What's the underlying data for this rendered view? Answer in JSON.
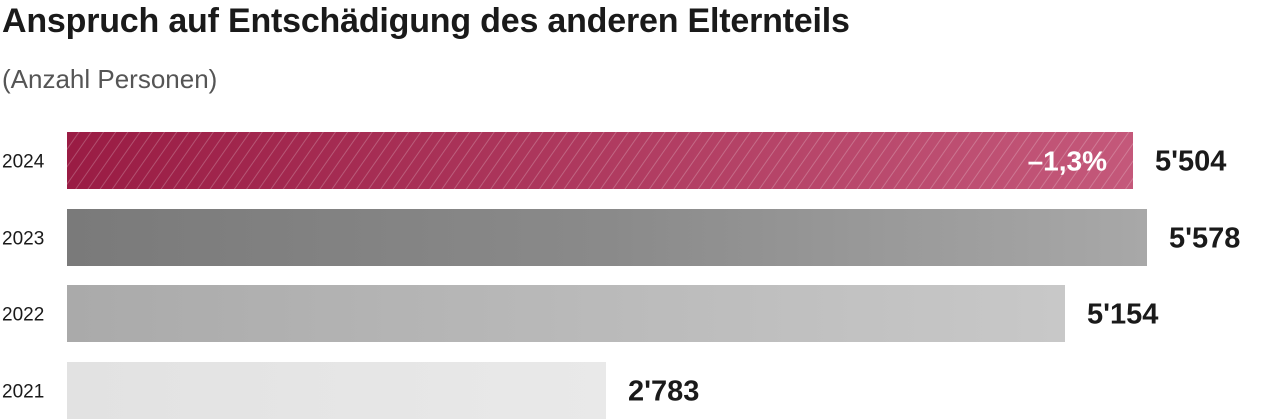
{
  "chart_data": {
    "type": "bar",
    "orientation": "horizontal",
    "title": "Anspruch auf Entschädigung des anderen Elternteils",
    "subtitle": "(Anzahl Personen)",
    "categories": [
      "2024",
      "2023",
      "2022",
      "2021"
    ],
    "values": [
      5504,
      5578,
      5154,
      2783
    ],
    "value_labels": [
      "5'504",
      "5'578",
      "5'154",
      "2'783"
    ],
    "annotations": [
      {
        "category": "2024",
        "text": "–1,3%"
      }
    ],
    "colors": [
      "#9b1f45",
      "#808080",
      "#b0b0b0",
      "#e4e4e4"
    ],
    "xlim": [
      0,
      5578
    ],
    "grid": false,
    "legend": "none"
  }
}
